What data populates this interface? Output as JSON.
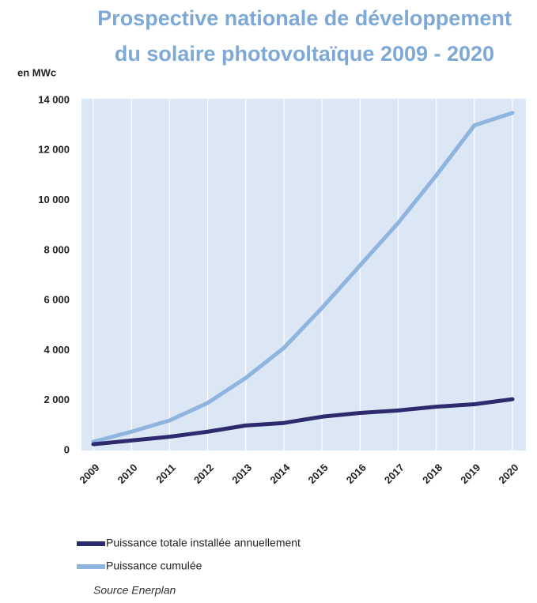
{
  "chart_data": {
    "type": "line",
    "title": [
      "Prospective nationale de développement",
      "du solaire photovoltaïque 2009 - 2020"
    ],
    "y_label": "en MWc",
    "categories": [
      "2009",
      "2010",
      "2011",
      "2012",
      "2013",
      "2014",
      "2015",
      "2016",
      "2017",
      "2018",
      "2019",
      "2020"
    ],
    "series": [
      {
        "name": "Puissance totale installée annuellement",
        "color": "#2d2a6e",
        "values": [
          250,
          400,
          550,
          750,
          1000,
          1100,
          1350,
          1500,
          1600,
          1750,
          1850,
          2050
        ]
      },
      {
        "name": "Puissance cumulée",
        "color": "#8fb4de",
        "values": [
          350,
          750,
          1200,
          1900,
          2900,
          4100,
          5700,
          7400,
          9100,
          11000,
          13000,
          13500
        ]
      }
    ],
    "ylim": [
      0,
      14000
    ],
    "yticks": [
      0,
      {
        "value": 2000,
        "label": "2 000"
      },
      {
        "value": 4000,
        "label": "4 000"
      },
      {
        "value": 6000,
        "label": "6 000"
      },
      {
        "value": 8000,
        "label": "8 000"
      },
      {
        "value": 10000,
        "label": "10 000"
      },
      {
        "value": 12000,
        "label": "12 000"
      },
      {
        "value": 14000,
        "label": "14 000"
      }
    ],
    "background": "#dce7f5",
    "source": "Source Enerplan"
  }
}
